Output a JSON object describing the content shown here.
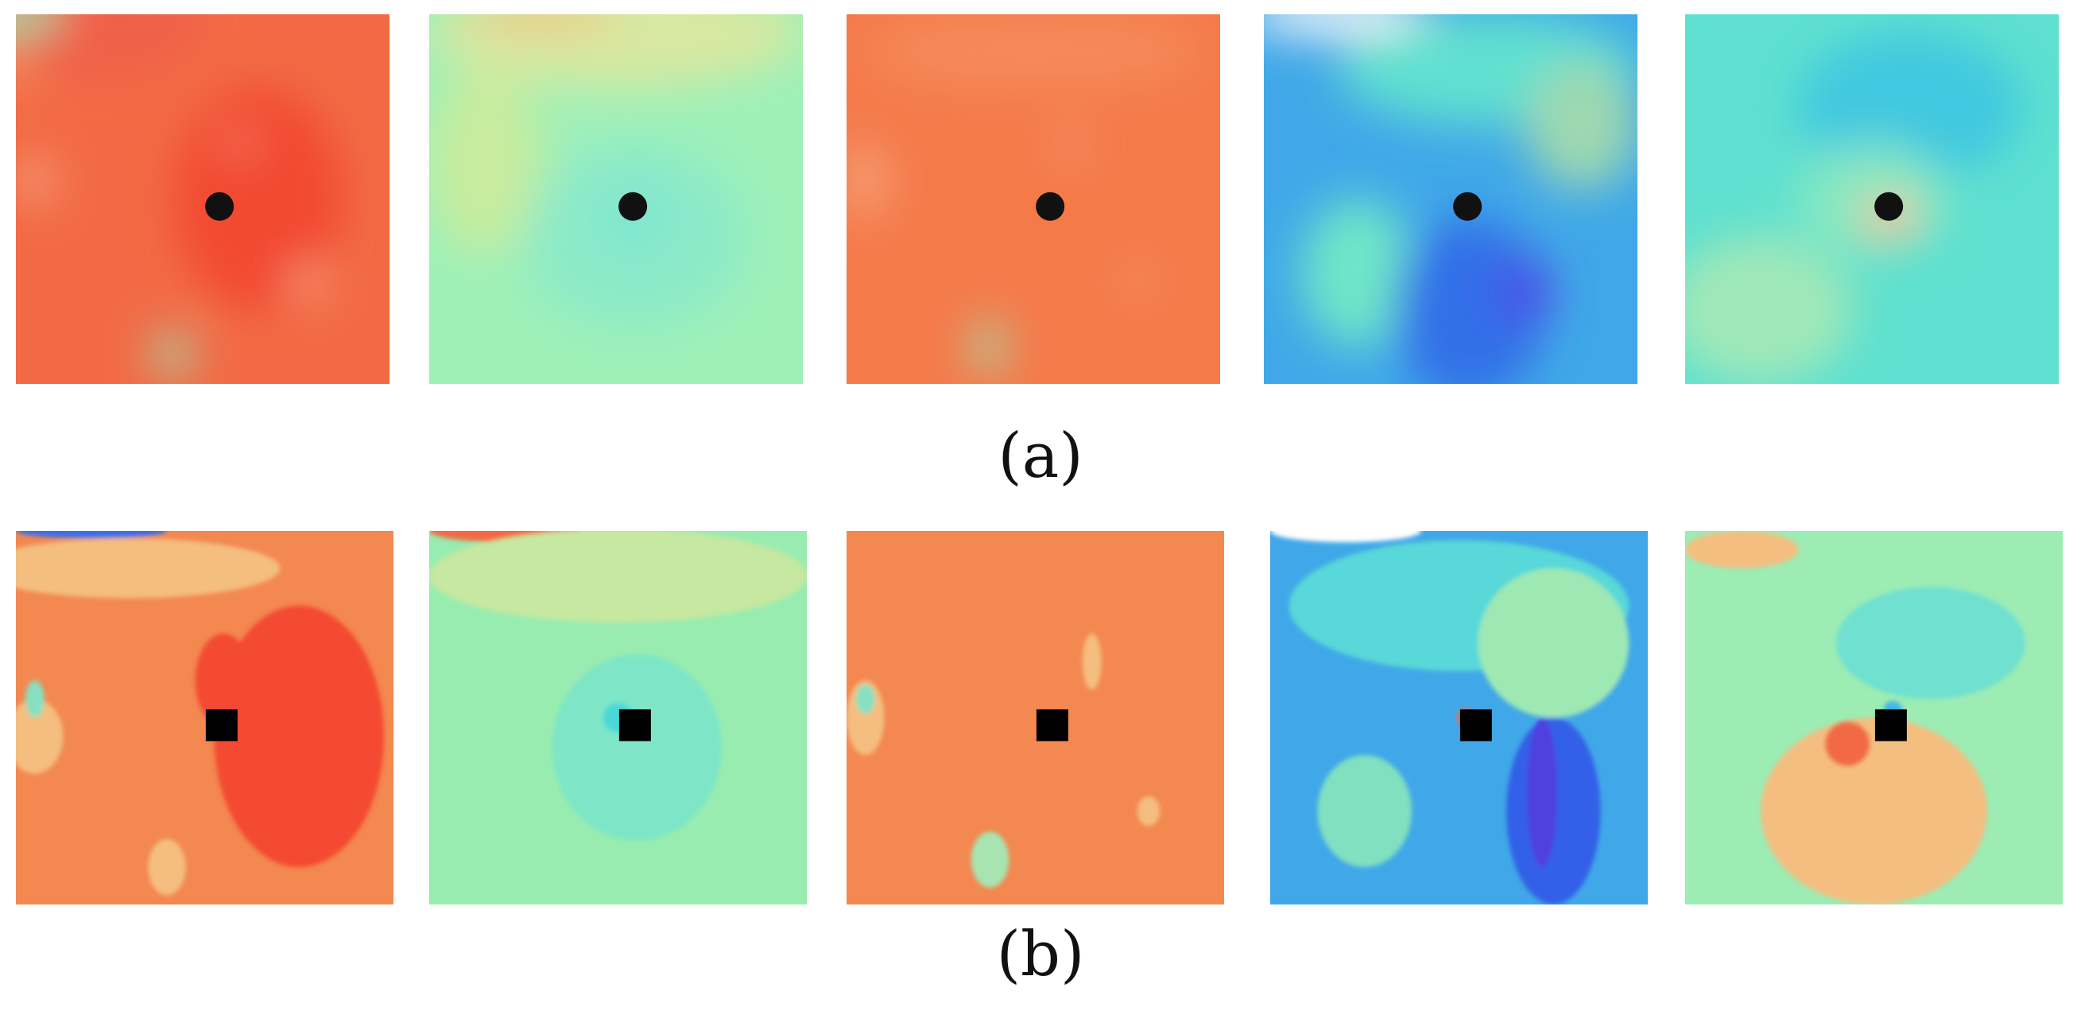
{
  "figure": {
    "rows": [
      {
        "id": "a",
        "caption": "(a)",
        "style": "smooth",
        "panels": [
          {
            "base": "#f26a45",
            "marker": "#111111",
            "blobs": [
              {
                "c": "#f3a06a",
                "rx": 0.0,
                "ry": 0.0,
                "w": 0.7,
                "h": 0.35
              },
              {
                "c": "#f06048",
                "rx": 0.2,
                "ry": 0.0,
                "w": 0.6,
                "h": 0.35
              },
              {
                "c": "#84e0b0",
                "rx": 0.0,
                "ry": 0.0,
                "w": 0.25,
                "h": 0.1
              },
              {
                "c": "#f24a30",
                "rx": 0.65,
                "ry": 0.5,
                "w": 0.45,
                "h": 0.6
              },
              {
                "c": "#f7b591",
                "rx": 0.05,
                "ry": 0.45,
                "w": 0.08,
                "h": 0.12
              },
              {
                "c": "#f7b591",
                "rx": 0.78,
                "ry": 0.72,
                "w": 0.08,
                "h": 0.08
              },
              {
                "c": "#f7b591",
                "rx": 0.6,
                "ry": 0.35,
                "w": 0.05,
                "h": 0.05
              },
              {
                "c": "#9fe0b0",
                "rx": 0.42,
                "ry": 0.92,
                "w": 0.1,
                "h": 0.12
              }
            ]
          },
          {
            "base": "#9ef0b8",
            "marker": "#111111",
            "blobs": [
              {
                "c": "#d8e8a0",
                "rx": 0.5,
                "ry": 0.05,
                "w": 1.0,
                "h": 0.3
              },
              {
                "c": "#f4b574",
                "rx": 0.3,
                "ry": 0.0,
                "w": 0.4,
                "h": 0.06
              },
              {
                "c": "#c8ec9e",
                "rx": 0.15,
                "ry": 0.4,
                "w": 0.3,
                "h": 0.5
              },
              {
                "c": "#8ceac8",
                "rx": 0.55,
                "ry": 0.6,
                "w": 0.6,
                "h": 0.5
              },
              {
                "c": "#7fe6d0",
                "rx": 0.55,
                "ry": 0.55,
                "w": 0.2,
                "h": 0.2
              }
            ]
          },
          {
            "base": "#f57a4a",
            "marker": "#111111",
            "blobs": [
              {
                "c": "#f58a5a",
                "rx": 0.5,
                "ry": 0.1,
                "w": 0.9,
                "h": 0.2
              },
              {
                "c": "#f6a880",
                "rx": 0.05,
                "ry": 0.45,
                "w": 0.1,
                "h": 0.2
              },
              {
                "c": "#f6a880",
                "rx": 0.6,
                "ry": 0.35,
                "w": 0.05,
                "h": 0.1
              },
              {
                "c": "#f6a880",
                "rx": 0.78,
                "ry": 0.72,
                "w": 0.06,
                "h": 0.06
              },
              {
                "c": "#a0e0b0",
                "rx": 0.38,
                "ry": 0.9,
                "w": 0.08,
                "h": 0.15
              }
            ]
          },
          {
            "base": "#40a8e8",
            "marker": "#111111",
            "blobs": [
              {
                "c": "#f4f6fa",
                "rx": 0.2,
                "ry": 0.0,
                "w": 0.5,
                "h": 0.12
              },
              {
                "c": "#60e0d0",
                "rx": 0.6,
                "ry": 0.15,
                "w": 0.8,
                "h": 0.3
              },
              {
                "c": "#9ed8b0",
                "rx": 0.85,
                "ry": 0.3,
                "w": 0.3,
                "h": 0.35
              },
              {
                "c": "#6fe6c8",
                "rx": 0.25,
                "ry": 0.7,
                "w": 0.3,
                "h": 0.4
              },
              {
                "c": "#3070e8",
                "rx": 0.55,
                "ry": 0.8,
                "w": 0.4,
                "h": 0.5
              },
              {
                "c": "#4a50e8",
                "rx": 0.7,
                "ry": 0.75,
                "w": 0.15,
                "h": 0.2
              }
            ]
          },
          {
            "base": "#5ee0d0",
            "marker": "#111111",
            "blobs": [
              {
                "c": "#40c8e0",
                "rx": 0.6,
                "ry": 0.25,
                "w": 0.6,
                "h": 0.4
              },
              {
                "c": "#88e8c0",
                "rx": 0.5,
                "ry": 0.5,
                "w": 0.4,
                "h": 0.3
              },
              {
                "c": "#a0e8b8",
                "rx": 0.2,
                "ry": 0.8,
                "w": 0.5,
                "h": 0.4
              },
              {
                "c": "#ffc098",
                "rx": 0.55,
                "ry": 0.55,
                "w": 0.15,
                "h": 0.1
              },
              {
                "c": "#ff6a3a",
                "rx": 0.53,
                "ry": 0.56,
                "w": 0.04,
                "h": 0.04
              }
            ]
          }
        ]
      },
      {
        "id": "b",
        "caption": "(b)",
        "style": "contour",
        "panels": [
          {
            "base": "#f38850",
            "marker": "#000000",
            "blobs": [
              {
                "c": "#3870e8",
                "rx": 0.2,
                "ry": 0.0,
                "w": 0.4,
                "h": 0.04
              },
              {
                "c": "#f4be80",
                "rx": 0.3,
                "ry": 0.1,
                "w": 0.8,
                "h": 0.16
              },
              {
                "c": "#f4be80",
                "rx": 0.05,
                "ry": 0.55,
                "w": 0.15,
                "h": 0.2
              },
              {
                "c": "#88e0c0",
                "rx": 0.05,
                "ry": 0.45,
                "w": 0.05,
                "h": 0.1
              },
              {
                "c": "#f44a30",
                "rx": 0.75,
                "ry": 0.55,
                "w": 0.45,
                "h": 0.7
              },
              {
                "c": "#f44a30",
                "rx": 0.55,
                "ry": 0.4,
                "w": 0.15,
                "h": 0.25
              },
              {
                "c": "#f4be80",
                "rx": 0.4,
                "ry": 0.9,
                "w": 0.1,
                "h": 0.15
              }
            ]
          },
          {
            "base": "#98ecb0",
            "marker": "#000000",
            "blobs": [
              {
                "c": "#f26a45",
                "rx": 0.2,
                "ry": 0.0,
                "w": 0.4,
                "h": 0.06
              },
              {
                "c": "#c6e8a0",
                "rx": 0.5,
                "ry": 0.12,
                "w": 1.0,
                "h": 0.25
              },
              {
                "c": "#7ee6c6",
                "rx": 0.55,
                "ry": 0.58,
                "w": 0.45,
                "h": 0.5
              },
              {
                "c": "#4ad8d8",
                "rx": 0.5,
                "ry": 0.5,
                "w": 0.08,
                "h": 0.08
              }
            ]
          },
          {
            "base": "#f38850",
            "marker": "#000000",
            "blobs": [
              {
                "c": "#f4be80",
                "rx": 0.05,
                "ry": 0.5,
                "w": 0.1,
                "h": 0.2
              },
              {
                "c": "#88e0c0",
                "rx": 0.05,
                "ry": 0.45,
                "w": 0.05,
                "h": 0.08
              },
              {
                "c": "#f4be80",
                "rx": 0.65,
                "ry": 0.35,
                "w": 0.05,
                "h": 0.15
              },
              {
                "c": "#f4be80",
                "rx": 0.8,
                "ry": 0.75,
                "w": 0.06,
                "h": 0.08
              },
              {
                "c": "#a8e4b0",
                "rx": 0.38,
                "ry": 0.88,
                "w": 0.1,
                "h": 0.15
              }
            ]
          },
          {
            "base": "#40a8e8",
            "marker": "#000000",
            "blobs": [
              {
                "c": "#ffffff",
                "rx": 0.2,
                "ry": 0.0,
                "w": 0.4,
                "h": 0.06
              },
              {
                "c": "#58d8d8",
                "rx": 0.5,
                "ry": 0.2,
                "w": 0.9,
                "h": 0.35
              },
              {
                "c": "#9ee8b4",
                "rx": 0.75,
                "ry": 0.3,
                "w": 0.4,
                "h": 0.4
              },
              {
                "c": "#80e0c0",
                "rx": 0.25,
                "ry": 0.75,
                "w": 0.25,
                "h": 0.3
              },
              {
                "c": "#3060e8",
                "rx": 0.75,
                "ry": 0.75,
                "w": 0.25,
                "h": 0.5
              },
              {
                "c": "#5040e0",
                "rx": 0.72,
                "ry": 0.7,
                "w": 0.08,
                "h": 0.4
              },
              {
                "c": "#f26a45",
                "rx": 0.52,
                "ry": 0.5,
                "w": 0.05,
                "h": 0.05
              }
            ]
          },
          {
            "base": "#9cecb4",
            "marker": "#000000",
            "blobs": [
              {
                "c": "#f4be80",
                "rx": 0.15,
                "ry": 0.05,
                "w": 0.3,
                "h": 0.1
              },
              {
                "c": "#70e0d0",
                "rx": 0.65,
                "ry": 0.3,
                "w": 0.5,
                "h": 0.3
              },
              {
                "c": "#f4be80",
                "rx": 0.5,
                "ry": 0.75,
                "w": 0.6,
                "h": 0.5
              },
              {
                "c": "#f26a45",
                "rx": 0.43,
                "ry": 0.57,
                "w": 0.12,
                "h": 0.12
              },
              {
                "c": "#40b8e8",
                "rx": 0.55,
                "ry": 0.48,
                "w": 0.05,
                "h": 0.05
              }
            ]
          }
        ]
      }
    ]
  }
}
